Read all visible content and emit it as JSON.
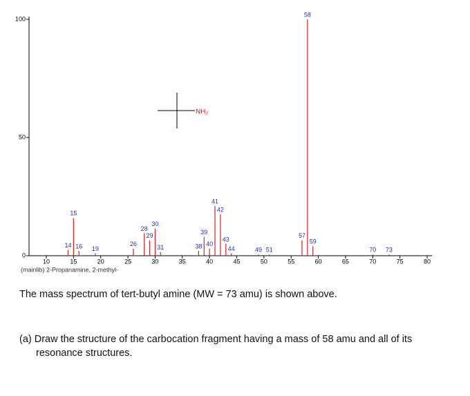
{
  "chart_data": {
    "type": "bar",
    "x": [
      14,
      15,
      16,
      19,
      26,
      28,
      29,
      30,
      31,
      38,
      39,
      40,
      41,
      42,
      43,
      44,
      49,
      51,
      57,
      58,
      59,
      70,
      73
    ],
    "values": [
      2.5,
      16,
      2,
      1,
      3,
      9.5,
      6.5,
      11.5,
      1.5,
      2,
      8,
      3,
      21,
      17.5,
      5,
      1,
      0.5,
      0.5,
      6.5,
      100,
      4,
      0.5,
      0.5
    ],
    "color": "#d42020",
    "xlim": [
      10,
      80
    ],
    "xticks": [
      10,
      15,
      20,
      25,
      30,
      35,
      40,
      45,
      50,
      55,
      60,
      65,
      70,
      75,
      80
    ],
    "ylim": [
      0,
      100
    ],
    "yticks": [
      0,
      50,
      100
    ],
    "footer": "(mainlib) 2-Propanamine, 2-methyl-",
    "structure_label": "NH₂"
  },
  "text": {
    "statement": "The mass spectrum of tert-butyl amine (MW = 73 amu) is shown above.",
    "question": "(a) Draw the structure of the carbocation fragment having a mass of 58 amu and all of its resonance structures."
  }
}
